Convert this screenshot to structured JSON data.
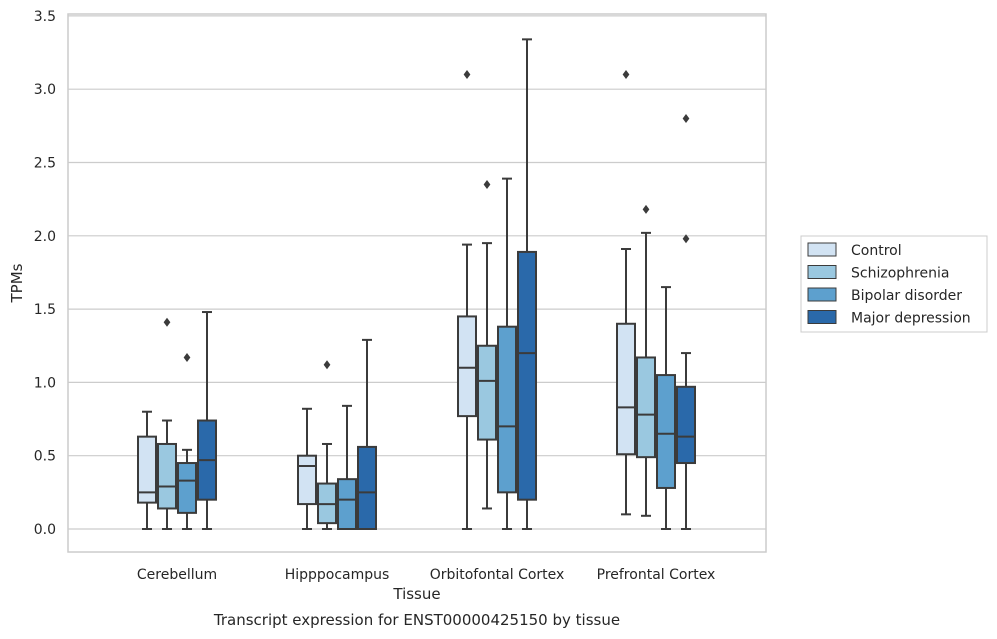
{
  "chart_data": {
    "type": "box",
    "caption": "Transcript expression for ENST00000425150 by tissue",
    "xlabel": "Tissue",
    "ylabel": "TPMs",
    "ylim": [
      -0.16,
      3.52
    ],
    "yticks": [
      0.0,
      0.5,
      1.0,
      1.5,
      2.0,
      2.5,
      3.0,
      3.5
    ],
    "ytick_labels": [
      "0.0",
      "0.5",
      "1.0",
      "1.5",
      "2.0",
      "2.5",
      "3.0",
      "3.5"
    ],
    "grid": "horizontal",
    "legend_position": "right",
    "categories": [
      "Cerebellum",
      "Hipppocampus",
      "Orbitofontal Cortex",
      "Prefrontal Cortex"
    ],
    "series": [
      {
        "name": "Control",
        "color": "#d2e3f3",
        "boxes": [
          {
            "whislo": 0.0,
            "q1": 0.18,
            "med": 0.25,
            "q3": 0.63,
            "whishi": 0.8,
            "fliers": []
          },
          {
            "whislo": 0.0,
            "q1": 0.17,
            "med": 0.43,
            "q3": 0.5,
            "whishi": 0.82,
            "fliers": []
          },
          {
            "whislo": 0.0,
            "q1": 0.77,
            "med": 1.1,
            "q3": 1.45,
            "whishi": 1.94,
            "fliers": [
              3.1
            ]
          },
          {
            "whislo": 0.1,
            "q1": 0.51,
            "med": 0.83,
            "q3": 1.4,
            "whishi": 1.91,
            "fliers": [
              3.1
            ]
          }
        ]
      },
      {
        "name": "Schizophrenia",
        "color": "#9ac8e0",
        "boxes": [
          {
            "whislo": 0.0,
            "q1": 0.14,
            "med": 0.29,
            "q3": 0.58,
            "whishi": 0.74,
            "fliers": [
              1.41
            ]
          },
          {
            "whislo": 0.0,
            "q1": 0.04,
            "med": 0.17,
            "q3": 0.31,
            "whishi": 0.58,
            "fliers": [
              1.12
            ]
          },
          {
            "whislo": 0.14,
            "q1": 0.61,
            "med": 1.01,
            "q3": 1.25,
            "whishi": 1.95,
            "fliers": [
              2.35
            ]
          },
          {
            "whislo": 0.09,
            "q1": 0.49,
            "med": 0.78,
            "q3": 1.17,
            "whishi": 2.02,
            "fliers": [
              2.18
            ]
          }
        ]
      },
      {
        "name": "Bipolar disorder",
        "color": "#5da0ce",
        "boxes": [
          {
            "whislo": 0.0,
            "q1": 0.11,
            "med": 0.33,
            "q3": 0.45,
            "whishi": 0.54,
            "fliers": [
              1.17
            ]
          },
          {
            "whislo": 0.0,
            "q1": 0.0,
            "med": 0.2,
            "q3": 0.34,
            "whishi": 0.84,
            "fliers": []
          },
          {
            "whislo": 0.0,
            "q1": 0.25,
            "med": 0.7,
            "q3": 1.38,
            "whishi": 2.39,
            "fliers": []
          },
          {
            "whislo": 0.0,
            "q1": 0.28,
            "med": 0.65,
            "q3": 1.05,
            "whishi": 1.65,
            "fliers": []
          }
        ]
      },
      {
        "name": "Major depression",
        "color": "#2a69aa",
        "boxes": [
          {
            "whislo": 0.0,
            "q1": 0.2,
            "med": 0.47,
            "q3": 0.74,
            "whishi": 1.48,
            "fliers": []
          },
          {
            "whislo": 0.0,
            "q1": 0.0,
            "med": 0.25,
            "q3": 0.56,
            "whishi": 1.29,
            "fliers": []
          },
          {
            "whislo": 0.0,
            "q1": 0.2,
            "med": 1.2,
            "q3": 1.89,
            "whishi": 3.34,
            "fliers": []
          },
          {
            "whislo": 0.0,
            "q1": 0.45,
            "med": 0.63,
            "q3": 0.97,
            "whishi": 1.2,
            "fliers": [
              1.98,
              2.8
            ]
          }
        ]
      }
    ],
    "line_color": "#3b3b3b",
    "grid_color": "#cccccc",
    "frame_color": "#cccccc"
  }
}
